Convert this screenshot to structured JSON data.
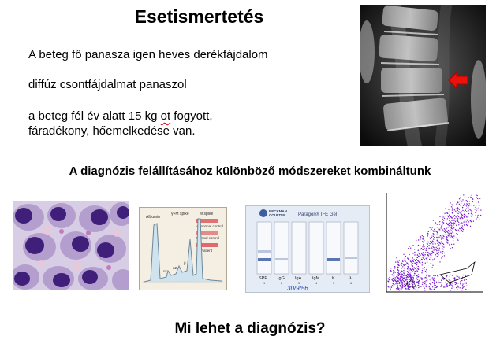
{
  "title": "Esetismertetés",
  "case_lines": [
    "A beteg fő panasza  igen heves  derékfájdalom",
    "diffúz  csontfájdalmat  panaszol",
    "a beteg  fél év alatt  15 kg",
    "fáradékony,  hőemelkedése  van."
  ],
  "case_line3_word": "ot",
  "case_line3_tail": " fogyott,",
  "subtitle": "A diagnózis felállításához különböző módszereket kombináltunk",
  "question": "Mi lehet a diagnózis?",
  "spep": {
    "labels": [
      "Albumin",
      "γ+M spike",
      "M spike",
      "Abnormal control",
      "Normal control",
      "Patient",
      "α1",
      "α2",
      "β"
    ]
  },
  "ife": {
    "brand": [
      "BECKMAN",
      "COULTER"
    ],
    "heading": "Paragon® IFE Gel",
    "lanes": [
      "SPE",
      "IgG",
      "IgA",
      "IgM",
      "K",
      "λ"
    ],
    "lane_numbers": [
      "1",
      "2",
      "3",
      "4",
      "5",
      "6"
    ],
    "handwriting": "30/9/56"
  },
  "colors": {
    "arrow": "#e8140c",
    "squiggle": "#d40000",
    "dots": "#7a1fd1"
  }
}
